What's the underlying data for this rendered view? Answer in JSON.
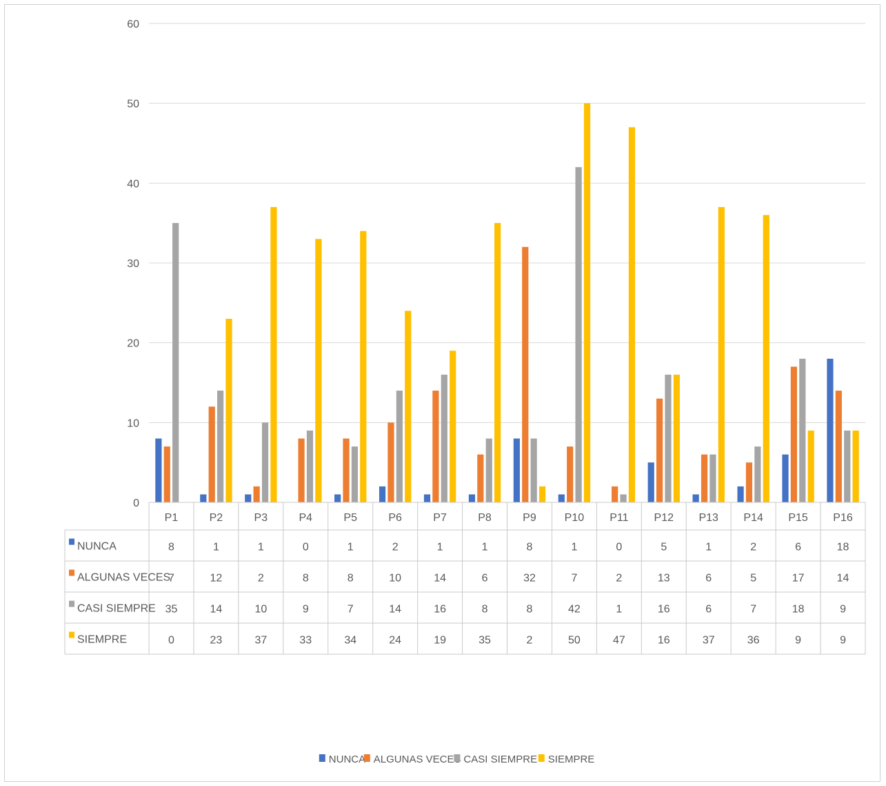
{
  "chart_data": {
    "type": "bar",
    "categories": [
      "P1",
      "P2",
      "P3",
      "P4",
      "P5",
      "P6",
      "P7",
      "P8",
      "P9",
      "P10",
      "P11",
      "P12",
      "P13",
      "P14",
      "P15",
      "P16"
    ],
    "series": [
      {
        "name": "NUNCA",
        "color": "#4472C4",
        "values": [
          8,
          1,
          1,
          0,
          1,
          2,
          1,
          1,
          8,
          1,
          0,
          5,
          1,
          2,
          6,
          18
        ]
      },
      {
        "name": "ALGUNAS VECES",
        "color": "#ED7D31",
        "values": [
          7,
          12,
          2,
          8,
          8,
          10,
          14,
          6,
          32,
          7,
          2,
          13,
          6,
          5,
          17,
          14
        ]
      },
      {
        "name": "CASI SIEMPRE",
        "color": "#A5A5A5",
        "values": [
          35,
          14,
          10,
          9,
          7,
          14,
          16,
          8,
          8,
          42,
          1,
          16,
          6,
          7,
          18,
          9
        ]
      },
      {
        "name": "SIEMPRE",
        "color": "#FFC000",
        "values": [
          0,
          23,
          37,
          33,
          34,
          24,
          19,
          35,
          2,
          50,
          47,
          16,
          37,
          36,
          9,
          9
        ]
      }
    ],
    "ylim": [
      0,
      60
    ],
    "yticks": [
      0,
      10,
      20,
      30,
      40,
      50,
      60
    ],
    "grid": true,
    "data_table": true,
    "legend_position": "bottom",
    "title": "",
    "xlabel": "",
    "ylabel": ""
  }
}
